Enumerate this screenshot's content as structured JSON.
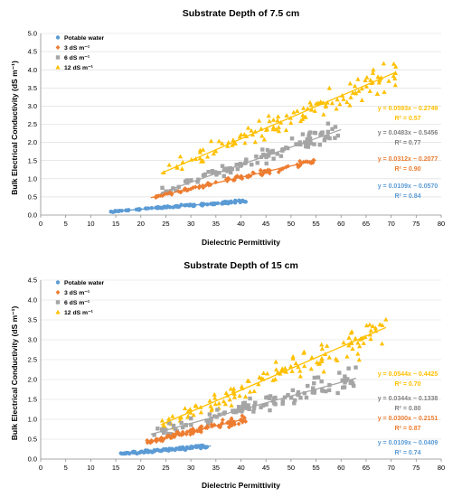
{
  "colors": {
    "potable": "#5b9bd5",
    "ds3": "#ed7d31",
    "ds6": "#a5a5a5",
    "ds12": "#ffc000"
  },
  "chart_data": [
    {
      "type": "scatter",
      "title": "Substrate Depth of 7.5 cm",
      "xlabel": "Dielectric Permittivity",
      "ylabel": "Bulk Electrical Conductivity (dS m⁻¹)",
      "xlim": [
        0,
        80
      ],
      "ylim": [
        0,
        5.0
      ],
      "xticks": [
        "0",
        "5",
        "10",
        "15",
        "20",
        "25",
        "30",
        "35",
        "40",
        "45",
        "50",
        "55",
        "60",
        "65",
        "70",
        "75",
        "80"
      ],
      "yticks": [
        "0.0",
        "0.5",
        "1.0",
        "1.5",
        "2.0",
        "2.5",
        "3.0",
        "3.5",
        "4.0",
        "4.5",
        "5.0"
      ],
      "grid": "horizontal",
      "legend_position": "top-left",
      "series": [
        {
          "name": "Potable water",
          "marker": "circle",
          "color_key": "potable",
          "x_range": [
            14,
            41
          ],
          "points": 90,
          "slope": 0.0109,
          "intercept": -0.057,
          "noise": 0.025,
          "trend_x": [
            14,
            41
          ],
          "equation": "y = 0.0109x − 0.0570",
          "r2": "R² = 0.84"
        },
        {
          "name": "3 dS m⁻¹",
          "marker": "diamond",
          "color_key": "ds3",
          "x_range": [
            22,
            55
          ],
          "points": 95,
          "slope": 0.0312,
          "intercept": -0.2077,
          "noise": 0.06,
          "trend_x": [
            22,
            55
          ],
          "equation": "y = 0.0312x − 0.2077",
          "r2": "R² = 0.90"
        },
        {
          "name": "6 dS m⁻¹",
          "marker": "square",
          "color_key": "ds6",
          "x_range": [
            24,
            60
          ],
          "points": 110,
          "slope": 0.0483,
          "intercept": -0.5456,
          "noise": 0.17,
          "trend_x": [
            24,
            60
          ],
          "equation": "y = 0.0483x − 0.5456",
          "r2": "R² = 0.77"
        },
        {
          "name": "12 dS m⁻¹",
          "marker": "triangle",
          "color_key": "ds12",
          "x_range": [
            24,
            71
          ],
          "points": 125,
          "slope": 0.0593,
          "intercept": -0.2749,
          "noise": 0.33,
          "trend_x": [
            24,
            71
          ],
          "equation": "y = 0.0593x − 0.2749",
          "r2": "R² = 0.57"
        }
      ]
    },
    {
      "type": "scatter",
      "title": "Substrate Depth of 15 cm",
      "xlabel": "Dielectric Permittivity",
      "ylabel": "Bulk Electrical Conductivity (dS m⁻¹)",
      "xlim": [
        0,
        80
      ],
      "ylim": [
        0,
        4.5
      ],
      "xticks": [
        "0",
        "5",
        "10",
        "15",
        "20",
        "25",
        "30",
        "35",
        "40",
        "45",
        "50",
        "55",
        "60",
        "65",
        "70",
        "75",
        "80"
      ],
      "yticks": [
        "0.0",
        "0.5",
        "1.0",
        "1.5",
        "2.0",
        "2.5",
        "3.0",
        "3.5",
        "4.0",
        "4.5"
      ],
      "grid": "horizontal",
      "legend_position": "top-left",
      "series": [
        {
          "name": "Potable water",
          "marker": "circle",
          "color_key": "potable",
          "x_range": [
            16,
            34
          ],
          "points": 90,
          "slope": 0.0109,
          "intercept": -0.0409,
          "noise": 0.03,
          "trend_x": [
            16,
            34
          ],
          "equation": "y = 0.0109x − 0.0409",
          "r2": "R² = 0.74"
        },
        {
          "name": "3 dS m⁻¹",
          "marker": "diamond",
          "color_key": "ds3",
          "x_range": [
            21,
            41
          ],
          "points": 95,
          "slope": 0.03,
          "intercept": -0.2151,
          "noise": 0.07,
          "trend_x": [
            21,
            41
          ],
          "equation": "y = 0.0300x − 0.2151",
          "r2": "R² = 0.87"
        },
        {
          "name": "6 dS m⁻¹",
          "marker": "square",
          "color_key": "ds6",
          "x_range": [
            22,
            63
          ],
          "points": 110,
          "slope": 0.0344,
          "intercept": -0.1338,
          "noise": 0.2,
          "trend_x": [
            22,
            63
          ],
          "equation": "y = 0.0344x − 0.1338",
          "r2": "R² = 0.80"
        },
        {
          "name": "12 dS m⁻¹",
          "marker": "triangle",
          "color_key": "ds12",
          "x_range": [
            24,
            69
          ],
          "points": 125,
          "slope": 0.0544,
          "intercept": -0.4425,
          "noise": 0.3,
          "trend_x": [
            24,
            69
          ],
          "equation": "y = 0.0544x − 0.4425",
          "r2": "R² = 0.70"
        }
      ]
    }
  ]
}
